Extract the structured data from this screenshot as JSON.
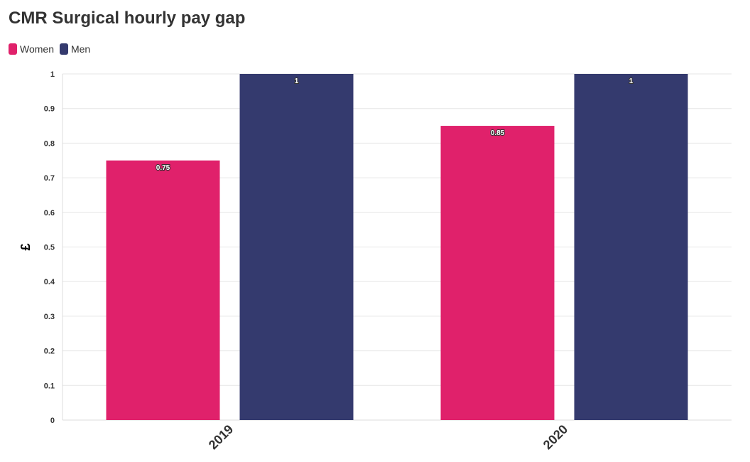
{
  "title": "CMR Surgical hourly pay gap",
  "legend": [
    {
      "label": "Women",
      "color": "#e0216b"
    },
    {
      "label": "Men",
      "color": "#343a6e"
    }
  ],
  "chart_data": {
    "type": "bar",
    "title": "CMR Surgical hourly pay gap",
    "categories": [
      "2019",
      "2020"
    ],
    "series": [
      {
        "name": "Women",
        "values": [
          0.75,
          0.85
        ],
        "color": "#e0216b"
      },
      {
        "name": "Men",
        "values": [
          1,
          1
        ],
        "color": "#343a6e"
      }
    ],
    "xlabel": "",
    "ylabel": "£",
    "ylim": [
      0,
      1
    ],
    "yticks": [
      "0",
      "0.1",
      "0.2",
      "0.3",
      "0.4",
      "0.5",
      "0.6",
      "0.7",
      "0.8",
      "0.9",
      "1"
    ],
    "grid": true,
    "legend_position": "top-left"
  }
}
